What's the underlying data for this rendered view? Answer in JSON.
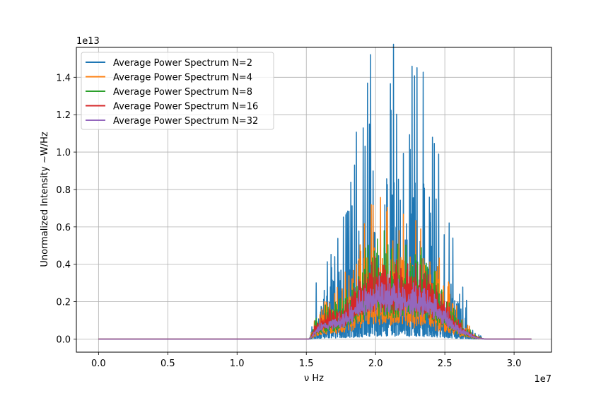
{
  "chart_data": {
    "type": "line",
    "title": "",
    "xlabel": "ν Hz",
    "ylabel": "Unormalized Intensity ~W/Hz",
    "x_scale_label": "1e7",
    "y_scale_label": "1e13",
    "x_multiplier": 10000000.0,
    "y_multiplier": 10000000000000.0,
    "xlim": [
      -0.16,
      3.27
    ],
    "ylim": [
      -0.07,
      1.56
    ],
    "x_ticks": [
      0.0,
      0.5,
      1.0,
      1.5,
      2.0,
      2.5,
      3.0
    ],
    "x_tick_labels": [
      "0.0",
      "0.5",
      "1.0",
      "1.5",
      "2.0",
      "2.5",
      "3.0"
    ],
    "y_ticks": [
      0.0,
      0.2,
      0.4,
      0.6,
      0.8,
      1.0,
      1.2,
      1.4
    ],
    "y_tick_labels": [
      "0.0",
      "0.2",
      "0.4",
      "0.6",
      "0.8",
      "1.0",
      "1.2",
      "1.4"
    ],
    "grid": true,
    "legend_position": "top-left",
    "x_range_data": [
      0.0,
      3.125
    ],
    "signal_band": [
      1.52,
      2.8
    ],
    "series": [
      {
        "name": "Average Power Spectrum N=2",
        "color": "#1f77b4",
        "max": 1.5,
        "spread": 1.0
      },
      {
        "name": "Average Power Spectrum N=4",
        "color": "#ff7f0e",
        "max": 0.73,
        "spread": 0.7
      },
      {
        "name": "Average Power Spectrum N=8",
        "color": "#2ca02c",
        "max": 0.57,
        "spread": 0.5
      },
      {
        "name": "Average Power Spectrum N=16",
        "color": "#d62728",
        "max": 0.46,
        "spread": 0.35
      },
      {
        "name": "Average Power Spectrum N=32",
        "color": "#9467bd",
        "max": 0.35,
        "spread": 0.25
      }
    ]
  }
}
